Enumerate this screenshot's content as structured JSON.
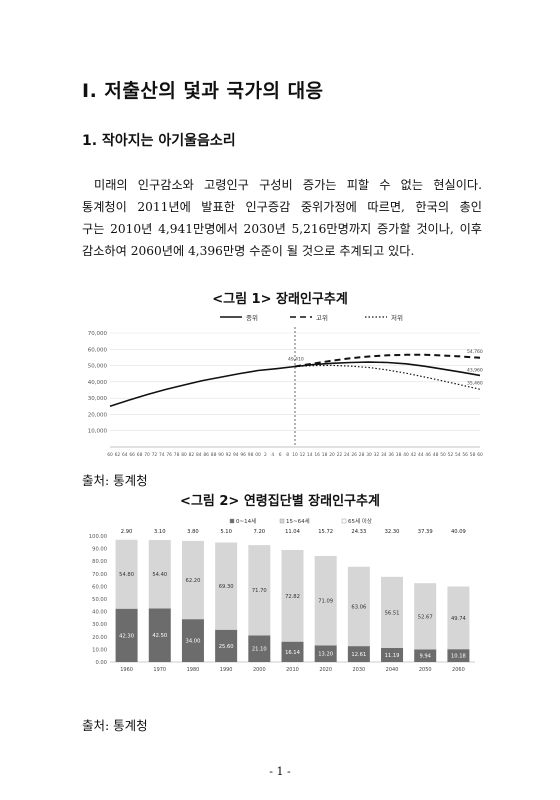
{
  "heading1": "Ⅰ. 저출산의 덫과 국가의 대응",
  "heading2": "1. 작아지는 아기울음소리",
  "paragraph_lines": [
    "미래의 인구감소와 고령인구 구성비 증가는 피할 수 없는 현실이다.",
    "통계청이 2011년에 발표한 인구증감 중위가정에 따르면, 한국의 총인",
    "구는 2010년 4,941만명에서 2030년 5,216만명까지 증가할 것이나, 이후",
    "감소하여 2060년에 4,396만명 수준이 될 것으로 추계되고 있다."
  ],
  "figure1": {
    "title": "<그림 1> 장래인구추계",
    "source": "출처: 통계청"
  },
  "figure2": {
    "title": "<그림 2> 연령집단별 장래인구추계",
    "source": "출처: 통계청"
  },
  "page_number": "- 1 -",
  "chart_data": [
    {
      "type": "line",
      "title": "",
      "legend": [
        "중위",
        "고위",
        "저위"
      ],
      "legend_position": "top-center",
      "ylim": [
        0,
        70000
      ],
      "yticks": [
        "70,000",
        "60,000",
        "50,000",
        "40,000",
        "30,000",
        "20,000",
        "10,000"
      ],
      "xticks": [
        "60",
        "62",
        "64",
        "66",
        "68",
        "70",
        "72",
        "74",
        "76",
        "78",
        "80",
        "82",
        "84",
        "86",
        "88",
        "90",
        "92",
        "94",
        "96",
        "98",
        "00",
        "2",
        "4",
        "6",
        "8",
        "10",
        "12",
        "14",
        "16",
        "18",
        "20",
        "22",
        "24",
        "26",
        "28",
        "30",
        "32",
        "34",
        "36",
        "38",
        "40",
        "42",
        "44",
        "46",
        "48",
        "50",
        "52",
        "54",
        "56",
        "58",
        "60"
      ],
      "annotations": {
        "2010": "49,410",
        "2060_high": "54,760",
        "2060_mid": "43,960",
        "2060_low": "35,460"
      },
      "series": [
        {
          "name": "중위",
          "x": [
            1960,
            1965,
            1970,
            1975,
            1980,
            1985,
            1990,
            1995,
            2000,
            2005,
            2010,
            2015,
            2020,
            2025,
            2030,
            2035,
            2040,
            2045,
            2050,
            2055,
            2060
          ],
          "values": [
            25000,
            28700,
            32200,
            35300,
            38100,
            40800,
            42900,
            45100,
            47000,
            48100,
            49410,
            50600,
            51400,
            51900,
            52160,
            51900,
            51100,
            49600,
            47800,
            45900,
            43960
          ]
        },
        {
          "name": "고위",
          "x": [
            2010,
            2015,
            2020,
            2025,
            2030,
            2035,
            2040,
            2045,
            2050,
            2055,
            2060
          ],
          "values": [
            49410,
            51300,
            53000,
            54500,
            55600,
            56300,
            56600,
            56600,
            56200,
            55600,
            54760
          ]
        },
        {
          "name": "저위",
          "x": [
            2010,
            2015,
            2020,
            2025,
            2030,
            2035,
            2040,
            2045,
            2050,
            2055,
            2060
          ],
          "values": [
            49410,
            50000,
            50100,
            49700,
            48800,
            47300,
            45300,
            43000,
            40600,
            38000,
            35460
          ]
        }
      ]
    },
    {
      "type": "bar",
      "stacked": true,
      "title": "",
      "legend": [
        "0~14세",
        "15~64세",
        "65세 이상"
      ],
      "legend_position": "top-center",
      "ylim": [
        0,
        100
      ],
      "yticks": [
        "100.00",
        "90.00",
        "80.00",
        "70.00",
        "60.00",
        "50.00",
        "40.00",
        "30.00",
        "20.00",
        "10.00",
        "0.00"
      ],
      "categories": [
        "1960",
        "1970",
        "1980",
        "1990",
        "2000",
        "2010",
        "2020",
        "2030",
        "2040",
        "2050",
        "2060"
      ],
      "series": [
        {
          "name": "0~14세",
          "values": [
            42.3,
            42.5,
            34.0,
            25.6,
            21.1,
            16.14,
            13.2,
            12.61,
            11.19,
            9.94,
            10.18
          ]
        },
        {
          "name": "15~64세",
          "values": [
            54.8,
            54.4,
            62.2,
            69.3,
            71.7,
            72.82,
            71.09,
            63.06,
            56.51,
            52.67,
            49.74
          ]
        },
        {
          "name": "65세 이상",
          "values": [
            2.9,
            3.1,
            3.8,
            5.1,
            7.2,
            11.04,
            15.72,
            24.33,
            32.3,
            37.39,
            40.09
          ]
        }
      ],
      "labels": {
        "0~14세": [
          "42.30",
          "42.50",
          "34.00",
          "25.60",
          "21.10",
          "16.14",
          "13.20",
          "12.61",
          "11.19",
          "9.94",
          "10.18"
        ],
        "15~64세": [
          "54.80",
          "54.40",
          "62.20",
          "69.30",
          "71.70",
          "72.82",
          "71.09",
          "63.06",
          "56.51",
          "52.67",
          "49.74"
        ],
        "65세 이상": [
          "2.90",
          "3.10",
          "3.80",
          "5.10",
          "7.20",
          "11.04",
          "15.72",
          "24.33",
          "32.30",
          "37.39",
          "40.09"
        ]
      }
    }
  ]
}
